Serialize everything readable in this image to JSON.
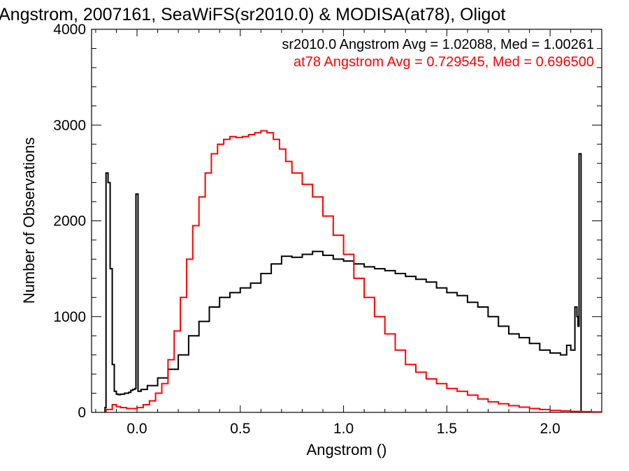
{
  "chart_data": {
    "type": "line",
    "title": "Angstrom, 2007161, SeaWiFS(sr2010.0) & MODISA(at78), Oligot",
    "xlabel": "Angstrom ()",
    "ylabel": "Number of Observations",
    "xlim": [
      -0.22,
      2.25
    ],
    "ylim": [
      0,
      4000
    ],
    "x_ticks": [
      0.0,
      0.5,
      1.0,
      1.5,
      2.0
    ],
    "x_tick_labels": [
      "0.0",
      "0.5",
      "1.0",
      "1.5",
      "2.0"
    ],
    "y_ticks": [
      0,
      1000,
      2000,
      3000,
      4000
    ],
    "y_tick_labels": [
      "0",
      "1000",
      "2000",
      "3000",
      "4000"
    ],
    "grid": false,
    "legend_position": "top-right",
    "annotations": [
      {
        "text": "sr2010.0 Angstrom Avg = 1.02088, Med = 1.00261",
        "color": "#000000"
      },
      {
        "text": "at78 Angstrom Avg = 0.729545, Med = 0.696500",
        "color": "#ff0000"
      }
    ],
    "series": [
      {
        "name": "sr2010.0",
        "color": "#000000",
        "x": [
          -0.155,
          -0.15,
          -0.14,
          -0.13,
          -0.12,
          -0.11,
          -0.1,
          -0.09,
          -0.08,
          -0.07,
          -0.06,
          -0.05,
          -0.04,
          -0.03,
          -0.02,
          -0.01,
          -0.005,
          0.0,
          0.005,
          0.02,
          0.05,
          0.1,
          0.15,
          0.2,
          0.25,
          0.3,
          0.35,
          0.4,
          0.45,
          0.5,
          0.55,
          0.6,
          0.65,
          0.7,
          0.75,
          0.8,
          0.85,
          0.9,
          0.95,
          1.0,
          1.05,
          1.1,
          1.15,
          1.2,
          1.25,
          1.3,
          1.35,
          1.4,
          1.45,
          1.5,
          1.55,
          1.6,
          1.65,
          1.7,
          1.75,
          1.8,
          1.85,
          1.9,
          1.95,
          2.0,
          2.05,
          2.08,
          2.1,
          2.12,
          2.13,
          2.135,
          2.14,
          2.145,
          2.15
        ],
        "values": [
          50,
          2500,
          2400,
          1500,
          500,
          220,
          190,
          185,
          190,
          190,
          200,
          200,
          210,
          230,
          240,
          250,
          2280,
          2280,
          220,
          240,
          280,
          360,
          450,
          600,
          800,
          950,
          1100,
          1200,
          1250,
          1300,
          1350,
          1450,
          1550,
          1630,
          1620,
          1650,
          1680,
          1640,
          1600,
          1580,
          1550,
          1520,
          1500,
          1480,
          1450,
          1420,
          1390,
          1360,
          1300,
          1250,
          1220,
          1150,
          1100,
          1000,
          900,
          820,
          780,
          720,
          650,
          620,
          600,
          700,
          650,
          1100,
          1000,
          900,
          2700,
          2700,
          0
        ]
      },
      {
        "name": "at78",
        "color": "#ff0000",
        "x": [
          -0.15,
          -0.12,
          -0.1,
          -0.08,
          -0.05,
          -0.02,
          0.0,
          0.03,
          0.06,
          0.09,
          0.12,
          0.15,
          0.18,
          0.21,
          0.24,
          0.27,
          0.3,
          0.33,
          0.36,
          0.39,
          0.42,
          0.45,
          0.48,
          0.51,
          0.54,
          0.57,
          0.6,
          0.63,
          0.66,
          0.69,
          0.72,
          0.75,
          0.8,
          0.85,
          0.9,
          0.95,
          1.0,
          1.05,
          1.1,
          1.15,
          1.2,
          1.25,
          1.3,
          1.35,
          1.4,
          1.45,
          1.5,
          1.55,
          1.6,
          1.65,
          1.7,
          1.75,
          1.8,
          1.85,
          1.9,
          1.95,
          2.0,
          2.05,
          2.1,
          2.15,
          2.2,
          2.25
        ],
        "values": [
          30,
          80,
          60,
          50,
          40,
          40,
          50,
          80,
          120,
          200,
          300,
          550,
          850,
          1200,
          1600,
          1950,
          2250,
          2500,
          2700,
          2800,
          2850,
          2880,
          2870,
          2880,
          2900,
          2920,
          2940,
          2920,
          2850,
          2750,
          2620,
          2500,
          2380,
          2250,
          2050,
          1850,
          1650,
          1400,
          1200,
          1000,
          820,
          650,
          500,
          420,
          350,
          300,
          250,
          220,
          180,
          140,
          110,
          90,
          70,
          55,
          40,
          30,
          20,
          15,
          10,
          8,
          5,
          3
        ]
      }
    ]
  }
}
